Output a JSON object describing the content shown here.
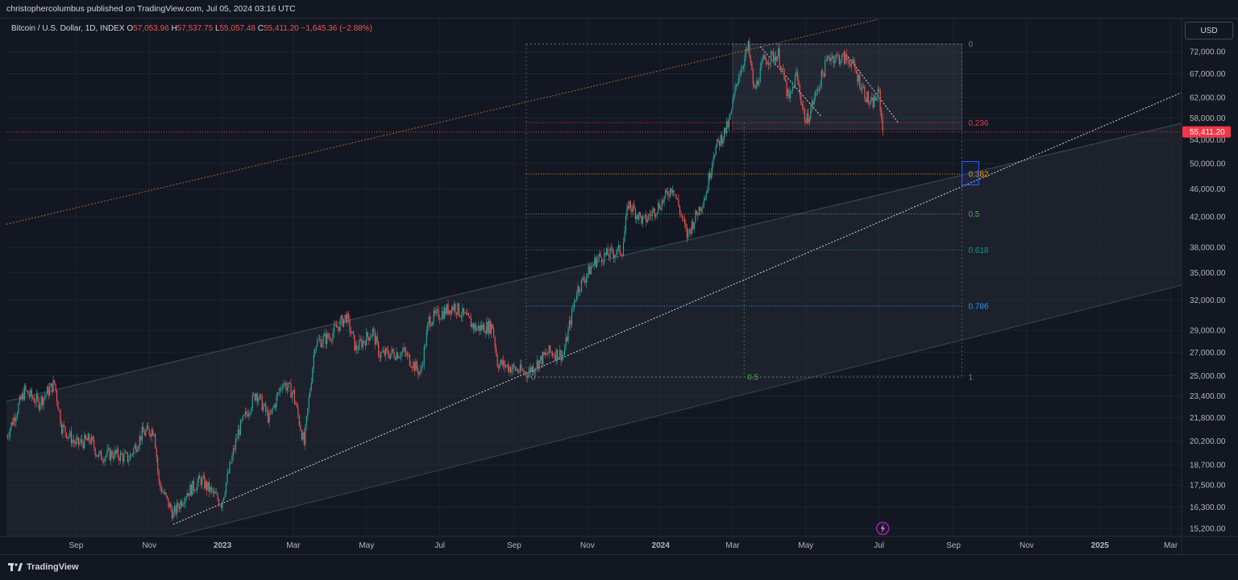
{
  "header": {
    "published_text": "christophercolumbus published on TradingView.com, Jul 05, 2024 03:16 UTC"
  },
  "legend": {
    "symbol": "Bitcoin / U.S. Dollar, 1D, INDEX",
    "open_label": "O",
    "open": "57,053.96",
    "high_label": "H",
    "high": "57,537.75",
    "low_label": "L",
    "low": "55,057.48",
    "close_label": "C",
    "close": "55,411.20",
    "change": "−1,645.36 (−2.88%)"
  },
  "currency_button": "USD",
  "brand": "TradingView",
  "colors": {
    "background": "#131722",
    "up": "#26a69a",
    "down": "#ef5350",
    "price_tag": "#f23645",
    "grid": "#1e222d",
    "channel_fill": "#2a2e39"
  },
  "chart_data": {
    "type": "candlestick",
    "y_scale": "log",
    "ylim": [
      14800,
      80000
    ],
    "x_range": [
      "2022-07-05",
      "2025-03-10"
    ],
    "y_ticks": [
      "72,000.00",
      "67,000.00",
      "62,000.00",
      "58,000.00",
      "54,000.00",
      "50,000.00",
      "46,000.00",
      "42,000.00",
      "38,000.00",
      "35,000.00",
      "32,000.00",
      "29,000.00",
      "27,000.00",
      "25,000.00",
      "23,400.00",
      "21,800.00",
      "20,200.00",
      "18,700.00",
      "17,500.00",
      "16,300.00",
      "15,200.00"
    ],
    "x_ticks": [
      {
        "label": "Sep",
        "date": "2022-09-01"
      },
      {
        "label": "Nov",
        "date": "2022-11-01"
      },
      {
        "label": "2023",
        "date": "2023-01-01"
      },
      {
        "label": "Mar",
        "date": "2023-03-01"
      },
      {
        "label": "May",
        "date": "2023-05-01"
      },
      {
        "label": "Jul",
        "date": "2023-07-01"
      },
      {
        "label": "Sep",
        "date": "2023-09-01"
      },
      {
        "label": "Nov",
        "date": "2023-11-01"
      },
      {
        "label": "2024",
        "date": "2024-01-01"
      },
      {
        "label": "Mar",
        "date": "2024-03-01"
      },
      {
        "label": "May",
        "date": "2024-05-01"
      },
      {
        "label": "Jul",
        "date": "2024-07-01"
      },
      {
        "label": "Sep",
        "date": "2024-09-01"
      },
      {
        "label": "Nov",
        "date": "2024-11-01"
      },
      {
        "label": "2025",
        "date": "2025-01-01"
      },
      {
        "label": "Mar",
        "date": "2025-03-01"
      }
    ],
    "last_price": {
      "label": "55,411.20",
      "value": 55411.2
    },
    "price_path": [
      [
        "2022-07-05",
        20500
      ],
      [
        "2022-07-20",
        23800
      ],
      [
        "2022-08-01",
        22900
      ],
      [
        "2022-08-14",
        24400
      ],
      [
        "2022-08-20",
        21200
      ],
      [
        "2022-09-01",
        20000
      ],
      [
        "2022-09-13",
        20300
      ],
      [
        "2022-09-20",
        19200
      ],
      [
        "2022-10-01",
        19400
      ],
      [
        "2022-10-15",
        19100
      ],
      [
        "2022-10-26",
        20700
      ],
      [
        "2022-11-05",
        21000
      ],
      [
        "2022-11-09",
        17600
      ],
      [
        "2022-11-21",
        15900
      ],
      [
        "2022-12-01",
        17000
      ],
      [
        "2022-12-14",
        17800
      ],
      [
        "2022-12-31",
        16500
      ],
      [
        "2023-01-14",
        20800
      ],
      [
        "2023-01-29",
        23700
      ],
      [
        "2023-02-09",
        21700
      ],
      [
        "2023-02-20",
        24500
      ],
      [
        "2023-03-01",
        23600
      ],
      [
        "2023-03-10",
        20000
      ],
      [
        "2023-03-19",
        27800
      ],
      [
        "2023-03-31",
        28400
      ],
      [
        "2023-04-14",
        30400
      ],
      [
        "2023-04-22",
        27300
      ],
      [
        "2023-05-06",
        28900
      ],
      [
        "2023-05-12",
        26800
      ],
      [
        "2023-06-01",
        27000
      ],
      [
        "2023-06-15",
        25200
      ],
      [
        "2023-06-22",
        30000
      ],
      [
        "2023-07-13",
        31400
      ],
      [
        "2023-07-31",
        29200
      ],
      [
        "2023-08-14",
        29400
      ],
      [
        "2023-08-18",
        26100
      ],
      [
        "2023-09-11",
        25200
      ],
      [
        "2023-09-30",
        27000
      ],
      [
        "2023-10-12",
        26800
      ],
      [
        "2023-10-23",
        33000
      ],
      [
        "2023-11-09",
        36700
      ],
      [
        "2023-11-30",
        37700
      ],
      [
        "2023-12-05",
        43900
      ],
      [
        "2023-12-18",
        41300
      ],
      [
        "2024-01-03",
        44300
      ],
      [
        "2024-01-11",
        46500
      ],
      [
        "2024-01-23",
        39500
      ],
      [
        "2024-02-08",
        45500
      ],
      [
        "2024-02-14",
        51800
      ],
      [
        "2024-02-27",
        57000
      ],
      [
        "2024-03-05",
        66000
      ],
      [
        "2024-03-14",
        73000
      ],
      [
        "2024-03-19",
        63200
      ],
      [
        "2024-03-27",
        70000
      ],
      [
        "2024-04-08",
        71400
      ],
      [
        "2024-04-17",
        61200
      ],
      [
        "2024-04-23",
        66800
      ],
      [
        "2024-05-01",
        57000
      ],
      [
        "2024-05-20",
        71000
      ],
      [
        "2024-06-07",
        70000
      ],
      [
        "2024-06-24",
        60300
      ],
      [
        "2024-07-01",
        62800
      ],
      [
        "2024-07-04",
        55411.2
      ]
    ],
    "fib_retracement": {
      "levels": [
        {
          "ratio": "0",
          "price": 73800,
          "color": "#787b86"
        },
        {
          "ratio": "0.236",
          "price": 57100,
          "color": "#f23645"
        },
        {
          "ratio": "0.382",
          "price": 48300,
          "color": "#ff9800"
        },
        {
          "ratio": "0.5",
          "price": 42400,
          "color": "#4caf50"
        },
        {
          "ratio": "0.618",
          "price": 37700,
          "color": "#089981"
        },
        {
          "ratio": "0.786",
          "price": 31400,
          "color": "#2196f3"
        },
        {
          "ratio": "1",
          "price": 24900,
          "color": "#787b86"
        }
      ],
      "start": "2023-09-11",
      "end": "2024-09-08",
      "midline_label": "0.5"
    },
    "annotations": {
      "channel_upper": [
        [
          "2022-07-05",
          23000
        ],
        [
          "2025-03-10",
          57000
        ]
      ],
      "channel_lower": [
        [
          "2022-11-21",
          14800
        ],
        [
          "2025-03-10",
          33600
        ]
      ],
      "dashed_trend_white": [
        [
          "2022-11-21",
          15400
        ],
        [
          "2025-03-10",
          63000
        ]
      ],
      "dashed_trend_orange": [
        [
          "2022-07-05",
          41000
        ],
        [
          "2024-06-30",
          80000
        ]
      ],
      "top_box": {
        "start": "2024-03-01",
        "end": "2024-09-08",
        "top": 73800,
        "bottom": 55900
      },
      "descending_lines": [
        [
          [
            "2024-03-24",
            73200
          ],
          [
            "2024-05-14",
            58200
          ]
        ],
        [
          [
            "2024-06-02",
            72000
          ],
          [
            "2024-07-17",
            57100
          ]
        ]
      ],
      "highlight_box": {
        "start": "2024-09-08",
        "end": "2024-09-22",
        "top": 50300,
        "bottom": 46600
      }
    }
  }
}
